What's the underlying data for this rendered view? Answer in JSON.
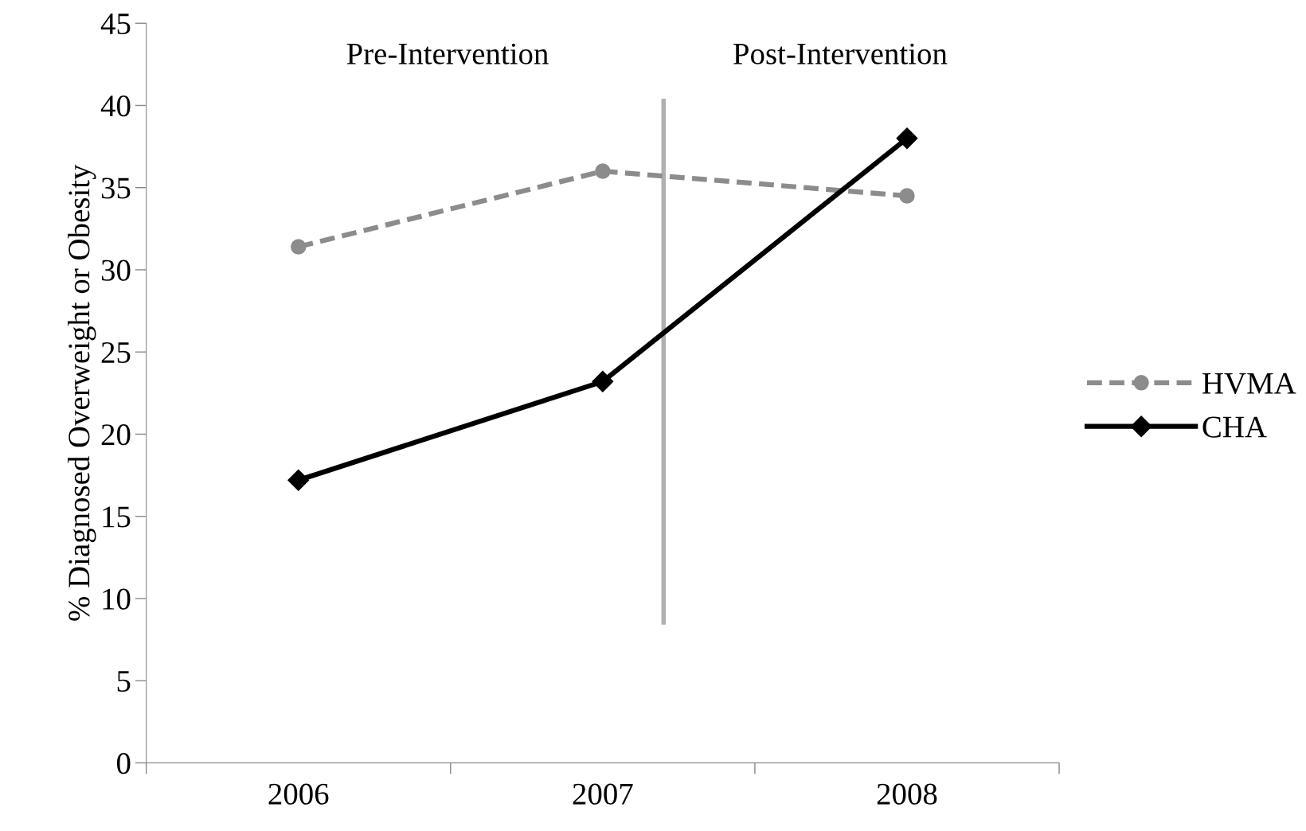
{
  "chart_data": {
    "type": "line",
    "ylabel": "% Diagnosed Overweight or Obesity",
    "x": [
      2006,
      2007,
      2008
    ],
    "xlim": [
      2005.5,
      2008.5
    ],
    "xticks": [
      {
        "value": 2005.5,
        "label": null
      },
      {
        "value": 2006,
        "label": "2006"
      },
      {
        "value": 2006.5,
        "label": null
      },
      {
        "value": 2007,
        "label": "2007"
      },
      {
        "value": 2007.5,
        "label": null
      },
      {
        "value": 2008,
        "label": "2008"
      },
      {
        "value": 2008.5,
        "label": null
      }
    ],
    "ylim": [
      0,
      45
    ],
    "yticks": [
      0,
      5,
      10,
      15,
      20,
      25,
      30,
      35,
      40,
      45
    ],
    "series": [
      {
        "name": "HVMA",
        "color": "#8c8c8c",
        "values": [
          31.4,
          36.0,
          34.5
        ],
        "marker": "circle",
        "line_style": "dashed"
      },
      {
        "name": "CHA",
        "color": "#000000",
        "values": [
          17.2,
          23.2,
          38.0
        ],
        "marker": "diamond",
        "line_style": "solid"
      }
    ],
    "ref_lines": [
      {
        "axis": "x",
        "value": 2007.2,
        "color": "#b0b0b0"
      }
    ],
    "annotations": [
      "Pre-Intervention",
      "Post-Intervention"
    ],
    "grid": false,
    "legend": "right"
  }
}
